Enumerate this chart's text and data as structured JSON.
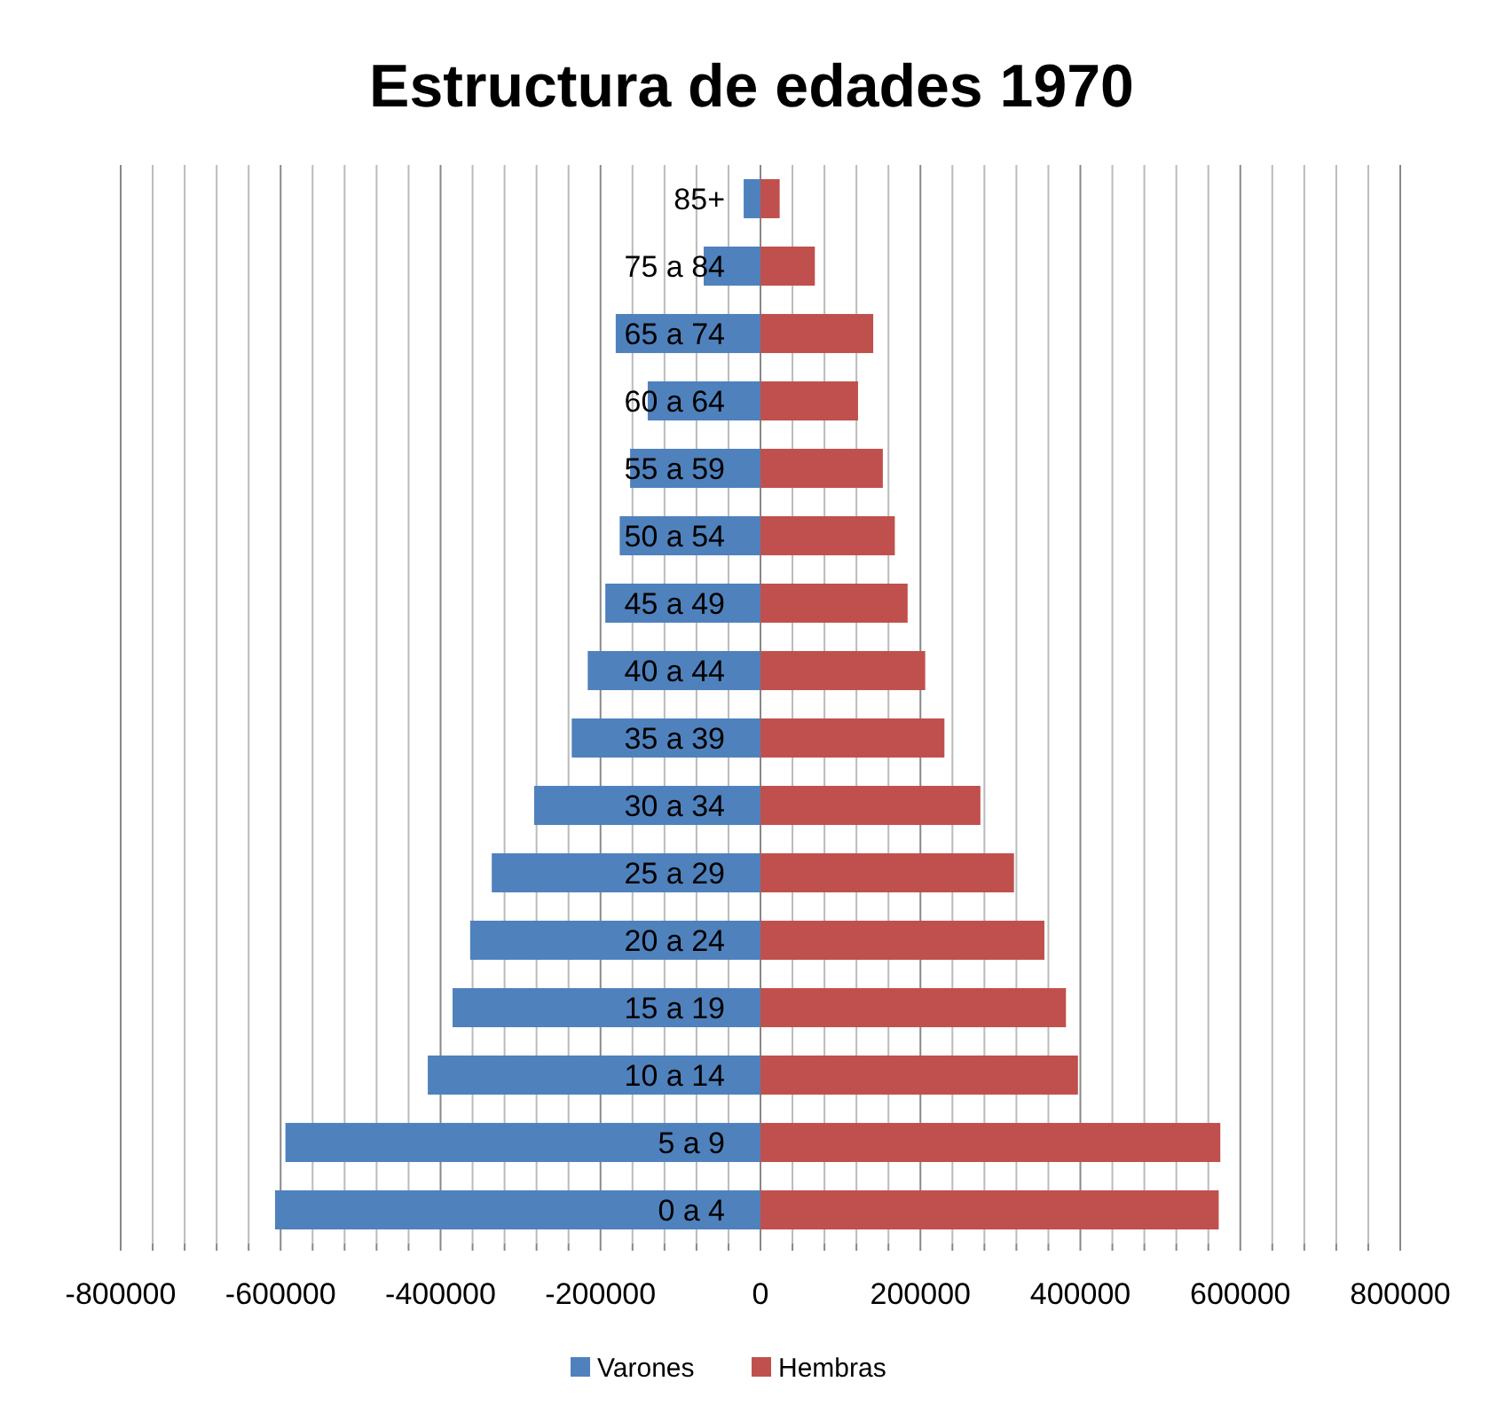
{
  "chart_data": {
    "type": "bar",
    "title": "Estructura de edades 1970",
    "orientation": "horizontal",
    "stacked": true,
    "categories": [
      "85+",
      "75 a 84",
      "65 a 74",
      "60 a 64",
      "55 a 59",
      "50 a 54",
      "45 a 49",
      "40 a 44",
      "35 a 39",
      "30 a 34",
      "25 a 29",
      "20 a 24",
      "15 a 19",
      "10 a 14",
      "5 a 9",
      "0 a 4"
    ],
    "series": [
      {
        "name": "Varones",
        "color": "#4f81bd",
        "values": [
          -21000,
          -71000,
          -181000,
          -141000,
          -163000,
          -176000,
          -194000,
          -216000,
          -236000,
          -283000,
          -336000,
          -363000,
          -385000,
          -416000,
          -594000,
          -607000
        ]
      },
      {
        "name": "Hembras",
        "color": "#c0504d",
        "values": [
          24000,
          68000,
          141000,
          122000,
          153000,
          168000,
          184000,
          206000,
          230000,
          275000,
          317000,
          355000,
          382000,
          397000,
          575000,
          573000
        ]
      }
    ],
    "xlim": [
      -800000,
      800000
    ],
    "xticks": [
      -800000,
      {
        "value": -760000,
        "label": null
      },
      {
        "value": -720000,
        "label": null
      },
      {
        "value": -680000,
        "label": null
      },
      {
        "value": -640000,
        "label": null
      },
      -600000,
      {
        "value": -560000,
        "label": null
      },
      {
        "value": -520000,
        "label": null
      },
      {
        "value": -480000,
        "label": null
      },
      {
        "value": -440000,
        "label": null
      },
      -400000,
      {
        "value": -360000,
        "label": null
      },
      {
        "value": -320000,
        "label": null
      },
      {
        "value": -280000,
        "label": null
      },
      {
        "value": -240000,
        "label": null
      },
      -200000,
      {
        "value": -160000,
        "label": null
      },
      {
        "value": -120000,
        "label": null
      },
      {
        "value": -80000,
        "label": null
      },
      {
        "value": -40000,
        "label": null
      },
      0,
      {
        "value": 40000,
        "label": null
      },
      {
        "value": 80000,
        "label": null
      },
      {
        "value": 120000,
        "label": null
      },
      {
        "value": 160000,
        "label": null
      },
      200000,
      {
        "value": 240000,
        "label": null
      },
      {
        "value": 280000,
        "label": null
      },
      {
        "value": 320000,
        "label": null
      },
      {
        "value": 360000,
        "label": null
      },
      400000,
      {
        "value": 440000,
        "label": null
      },
      {
        "value": 480000,
        "label": null
      },
      {
        "value": 520000,
        "label": null
      },
      {
        "value": 560000,
        "label": null
      },
      600000,
      {
        "value": 640000,
        "label": null
      },
      {
        "value": 680000,
        "label": null
      },
      {
        "value": 720000,
        "label": null
      },
      {
        "value": 760000,
        "label": null
      },
      800000
    ],
    "grid": "x",
    "legend": "bottom"
  }
}
